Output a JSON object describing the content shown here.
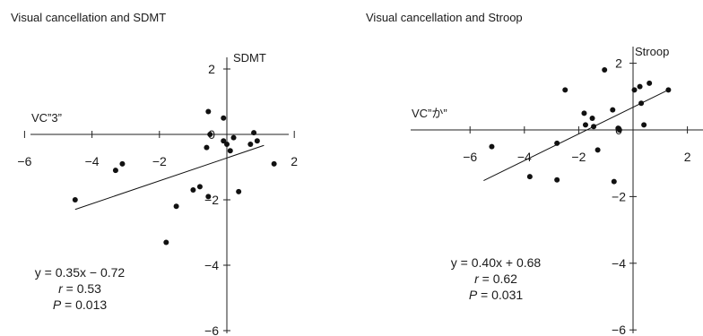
{
  "chart_data": [
    {
      "type": "scatter",
      "title": "Visual cancellation and SDMT",
      "xlabel": "VC”3”",
      "ylabel": "SDMT",
      "xlim": [
        -6,
        2.5
      ],
      "ylim": [
        -6,
        2.5
      ],
      "xticks": [
        -6,
        -4,
        -2,
        0,
        2
      ],
      "yticks": [
        -6,
        -4,
        -2,
        0,
        2
      ],
      "points": [
        {
          "x": -4.5,
          "y": -2.0
        },
        {
          "x": -3.3,
          "y": -1.1
        },
        {
          "x": -3.1,
          "y": -0.9
        },
        {
          "x": -1.8,
          "y": -3.3
        },
        {
          "x": -1.5,
          "y": -2.2
        },
        {
          "x": -1.0,
          "y": -1.7
        },
        {
          "x": -0.8,
          "y": -1.6
        },
        {
          "x": -0.55,
          "y": -1.9
        },
        {
          "x": -0.55,
          "y": 0.7
        },
        {
          "x": -0.5,
          "y": 0.0
        },
        {
          "x": -0.6,
          "y": -0.4
        },
        {
          "x": -0.1,
          "y": 0.5
        },
        {
          "x": -0.1,
          "y": -0.2
        },
        {
          "x": 0.0,
          "y": -0.3
        },
        {
          "x": 0.1,
          "y": -0.5
        },
        {
          "x": 0.2,
          "y": -0.1
        },
        {
          "x": 0.35,
          "y": -1.75
        },
        {
          "x": 0.7,
          "y": -0.3
        },
        {
          "x": 0.8,
          "y": 0.05
        },
        {
          "x": 0.9,
          "y": -0.2
        },
        {
          "x": 1.4,
          "y": -0.9
        }
      ],
      "fit": {
        "slope": 0.35,
        "intercept": -0.72,
        "x_range": [
          -4.5,
          1.1
        ]
      },
      "stats": {
        "equation": "y = 0.35x − 0.72",
        "r_label": "r",
        "r_value": " = 0.53",
        "p_label": "P",
        "p_value": " = 0.013"
      }
    },
    {
      "type": "scatter",
      "title": "Visual cancellation and Stroop",
      "xlabel": "VC”か”",
      "ylabel": "Stroop",
      "xlim": [
        -6,
        2.5
      ],
      "ylim": [
        -6,
        2.5
      ],
      "xticks": [
        -6,
        -4,
        -2,
        0,
        2
      ],
      "yticks": [
        -6,
        -4,
        -2,
        0,
        2
      ],
      "points": [
        {
          "x": -5.2,
          "y": -0.5
        },
        {
          "x": -3.8,
          "y": -1.4
        },
        {
          "x": -2.8,
          "y": -1.5
        },
        {
          "x": -2.8,
          "y": -0.4
        },
        {
          "x": -2.5,
          "y": 1.2
        },
        {
          "x": -1.8,
          "y": 0.5
        },
        {
          "x": -1.75,
          "y": 0.15
        },
        {
          "x": -1.5,
          "y": 0.35
        },
        {
          "x": -1.45,
          "y": 0.1
        },
        {
          "x": -1.3,
          "y": -0.6
        },
        {
          "x": -1.05,
          "y": 1.8
        },
        {
          "x": -0.75,
          "y": 0.6
        },
        {
          "x": -0.7,
          "y": -1.55
        },
        {
          "x": -0.55,
          "y": 0.05
        },
        {
          "x": -0.5,
          "y": 0.0
        },
        {
          "x": 0.05,
          "y": 1.2
        },
        {
          "x": 0.25,
          "y": 1.3
        },
        {
          "x": 0.3,
          "y": 0.8
        },
        {
          "x": 0.4,
          "y": 0.15
        },
        {
          "x": 0.6,
          "y": 1.4
        },
        {
          "x": 1.3,
          "y": 1.2
        }
      ],
      "fit": {
        "slope": 0.4,
        "intercept": 0.68,
        "x_range": [
          -5.5,
          1.3
        ]
      },
      "stats": {
        "equation": "y = 0.40x + 0.68",
        "r_label": "r",
        "r_value": " = 0.62",
        "p_label": "P",
        "p_value": " = 0.031"
      }
    }
  ]
}
